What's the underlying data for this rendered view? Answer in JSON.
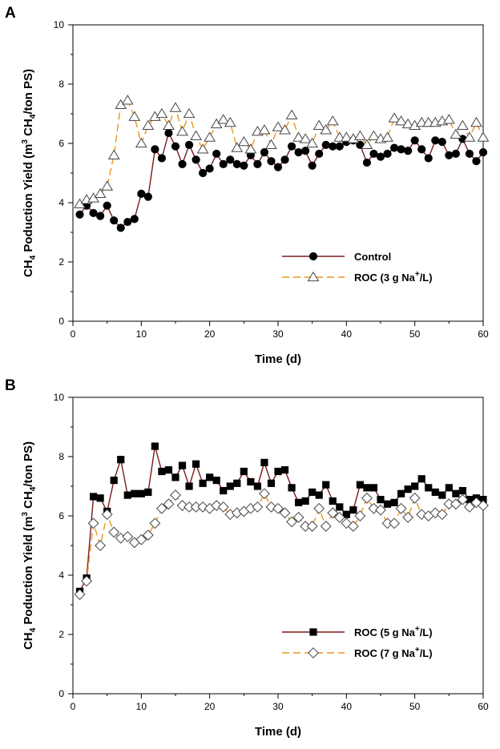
{
  "colors": {
    "control": "#7a1a1a",
    "roc": "#e8961e",
    "marker": "#000000"
  },
  "chart_data": [
    {
      "type": "line",
      "panel": "A",
      "xlabel": "Time (d)",
      "ylabel": {
        "main": "CH",
        "sub1": "4",
        "mid1": " Poduction Yield (m",
        "sup": "3",
        "mid2": " CH",
        "sub2": "4",
        "end": "/ton PS)"
      },
      "xlim": [
        0,
        60
      ],
      "ylim": [
        0,
        10
      ],
      "xticks": [
        0,
        10,
        20,
        30,
        40,
        50,
        60
      ],
      "yticks": [
        0,
        2,
        4,
        6,
        8,
        10
      ],
      "legend_position": "bottom-right",
      "series": [
        {
          "name": "Control",
          "legend_parts": [
            "Control"
          ],
          "marker": "filled-circle",
          "line": "solid",
          "color": "#7a1a1a",
          "x": [
            1,
            2,
            3,
            4,
            5,
            6,
            7,
            8,
            9,
            10,
            11,
            12,
            13,
            14,
            15,
            16,
            17,
            18,
            19,
            20,
            21,
            22,
            23,
            24,
            25,
            26,
            27,
            28,
            29,
            30,
            31,
            32,
            33,
            34,
            35,
            36,
            37,
            38,
            39,
            40,
            41,
            42,
            43,
            44,
            45,
            46,
            47,
            48,
            49,
            50,
            51,
            52,
            53,
            54,
            55,
            56,
            57,
            58,
            59,
            60
          ],
          "y": [
            3.6,
            3.9,
            3.65,
            3.55,
            3.9,
            3.4,
            3.15,
            3.35,
            3.45,
            4.3,
            4.2,
            5.8,
            5.5,
            6.35,
            5.9,
            5.3,
            5.95,
            5.45,
            5.0,
            5.15,
            5.65,
            5.3,
            5.45,
            5.3,
            5.25,
            5.6,
            5.3,
            5.7,
            5.4,
            5.2,
            5.45,
            5.9,
            5.7,
            5.75,
            5.25,
            5.65,
            5.95,
            5.9,
            5.9,
            6.05,
            6.1,
            5.95,
            5.35,
            5.65,
            5.55,
            5.65,
            5.85,
            5.8,
            5.75,
            6.1,
            5.8,
            5.5,
            6.1,
            6.05,
            5.6,
            5.65,
            6.15,
            5.65,
            5.4,
            5.7
          ]
        },
        {
          "name": "ROC (3 g Na+/L)",
          "legend_parts": [
            "ROC (3 g Na",
            "+",
            "/L)"
          ],
          "marker": "open-triangle",
          "line": "dashed",
          "color": "#e8961e",
          "x": [
            1,
            2,
            3,
            4,
            5,
            6,
            7,
            8,
            9,
            10,
            11,
            12,
            13,
            14,
            15,
            16,
            17,
            18,
            19,
            20,
            21,
            22,
            23,
            24,
            25,
            26,
            27,
            28,
            29,
            30,
            31,
            32,
            33,
            34,
            35,
            36,
            37,
            38,
            39,
            40,
            41,
            42,
            43,
            44,
            45,
            46,
            47,
            48,
            49,
            50,
            51,
            52,
            53,
            54,
            55,
            56,
            57,
            58,
            59,
            60
          ],
          "y": [
            3.95,
            4.1,
            4.15,
            4.3,
            4.55,
            5.6,
            7.3,
            7.45,
            6.9,
            6.0,
            6.6,
            6.9,
            7.0,
            6.6,
            7.2,
            6.4,
            7.0,
            6.25,
            5.8,
            6.2,
            6.65,
            6.8,
            6.7,
            5.85,
            6.05,
            5.8,
            6.4,
            6.45,
            5.95,
            6.55,
            6.45,
            6.95,
            6.2,
            6.15,
            6.0,
            6.6,
            6.45,
            6.75,
            6.2,
            6.2,
            6.15,
            6.25,
            5.95,
            6.25,
            6.15,
            6.2,
            6.85,
            6.75,
            6.65,
            6.6,
            6.7,
            6.7,
            6.7,
            6.75,
            6.8,
            6.3,
            6.6,
            6.2,
            6.7,
            6.2
          ]
        }
      ]
    },
    {
      "type": "line",
      "panel": "B",
      "xlabel": "Time (d)",
      "ylabel": {
        "main": "CH",
        "sub1": "4",
        "mid1": " Poduction Yield (m",
        "sup": "3",
        "mid2": " CH",
        "sub2": "4",
        "end": "/ton PS)"
      },
      "xlim": [
        0,
        60
      ],
      "ylim": [
        0,
        10
      ],
      "xticks": [
        0,
        10,
        20,
        30,
        40,
        50,
        60
      ],
      "yticks": [
        0,
        2,
        4,
        6,
        8,
        10
      ],
      "legend_position": "bottom-right",
      "series": [
        {
          "name": "ROC (5 g Na+/L)",
          "legend_parts": [
            "ROC (5 g Na",
            "+",
            "/L)"
          ],
          "marker": "filled-square",
          "line": "solid",
          "color": "#7a1a1a",
          "x": [
            1,
            2,
            3,
            4,
            5,
            6,
            7,
            8,
            9,
            10,
            11,
            12,
            13,
            14,
            15,
            16,
            17,
            18,
            19,
            20,
            21,
            22,
            23,
            24,
            25,
            26,
            27,
            28,
            29,
            30,
            31,
            32,
            33,
            34,
            35,
            36,
            37,
            38,
            39,
            40,
            41,
            42,
            43,
            44,
            45,
            46,
            47,
            48,
            49,
            50,
            51,
            52,
            53,
            54,
            55,
            56,
            57,
            58,
            59,
            60
          ],
          "y": [
            3.45,
            3.9,
            6.65,
            6.6,
            6.15,
            7.2,
            7.9,
            6.7,
            6.75,
            6.75,
            6.8,
            8.35,
            7.5,
            7.55,
            7.3,
            7.7,
            7.0,
            7.75,
            7.1,
            7.3,
            7.2,
            6.85,
            7.0,
            7.1,
            7.5,
            7.15,
            7.0,
            7.8,
            7.1,
            7.5,
            7.55,
            6.95,
            6.45,
            6.5,
            6.8,
            6.7,
            7.05,
            6.5,
            6.3,
            6.05,
            6.2,
            7.05,
            6.95,
            6.95,
            6.55,
            6.4,
            6.45,
            6.75,
            6.9,
            7.0,
            7.25,
            6.95,
            6.8,
            6.7,
            6.95,
            6.75,
            6.85,
            6.55,
            6.6,
            6.55
          ]
        },
        {
          "name": "ROC (7 g Na+/L)",
          "legend_parts": [
            "ROC (7 g Na",
            "+",
            "/L)"
          ],
          "marker": "open-diamond",
          "line": "dashed",
          "color": "#e8961e",
          "x": [
            1,
            2,
            3,
            4,
            5,
            6,
            7,
            8,
            9,
            10,
            11,
            12,
            13,
            14,
            15,
            16,
            17,
            18,
            19,
            20,
            21,
            22,
            23,
            24,
            25,
            26,
            27,
            28,
            29,
            30,
            31,
            32,
            33,
            34,
            35,
            36,
            37,
            38,
            39,
            40,
            41,
            42,
            43,
            44,
            45,
            46,
            47,
            48,
            49,
            50,
            51,
            52,
            53,
            54,
            55,
            56,
            57,
            58,
            59,
            60
          ],
          "y": [
            3.35,
            3.8,
            5.75,
            5.0,
            6.05,
            5.45,
            5.25,
            5.3,
            5.1,
            5.2,
            5.35,
            5.75,
            6.25,
            6.4,
            6.7,
            6.35,
            6.3,
            6.3,
            6.3,
            6.25,
            6.35,
            6.3,
            6.05,
            6.1,
            6.15,
            6.25,
            6.3,
            6.75,
            6.3,
            6.25,
            6.1,
            5.8,
            5.95,
            5.65,
            5.65,
            6.25,
            5.65,
            6.1,
            5.95,
            5.75,
            5.65,
            6.0,
            6.6,
            6.25,
            6.2,
            5.75,
            5.75,
            6.25,
            5.95,
            6.6,
            6.05,
            6.0,
            6.1,
            6.05,
            6.4,
            6.4,
            6.55,
            6.3,
            6.45,
            6.35
          ]
        }
      ]
    }
  ]
}
